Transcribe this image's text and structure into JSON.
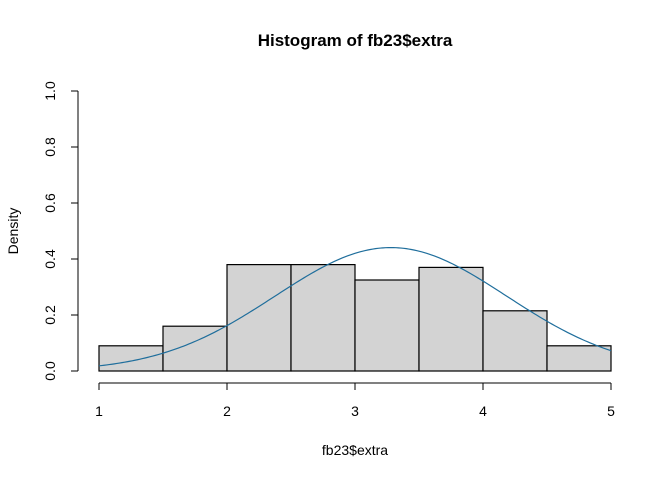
{
  "chart_data": {
    "type": "bar",
    "title": "Histogram of fb23$extra",
    "xlabel": "fb23$extra",
    "ylabel": "Density",
    "xlim": [
      1,
      5
    ],
    "ylim": [
      0,
      1
    ],
    "x_ticks": [
      1,
      2,
      3,
      4,
      5
    ],
    "y_ticks": [
      "0.0",
      "0.2",
      "0.4",
      "0.6",
      "0.8",
      "1.0"
    ],
    "bins": [
      {
        "x0": 1.0,
        "x1": 1.5,
        "density": 0.09
      },
      {
        "x0": 1.5,
        "x1": 2.0,
        "density": 0.16
      },
      {
        "x0": 2.0,
        "x1": 2.5,
        "density": 0.38
      },
      {
        "x0": 2.5,
        "x1": 3.0,
        "density": 0.38
      },
      {
        "x0": 3.0,
        "x1": 3.5,
        "density": 0.325
      },
      {
        "x0": 3.5,
        "x1": 4.0,
        "density": 0.37
      },
      {
        "x0": 4.0,
        "x1": 4.5,
        "density": 0.215
      },
      {
        "x0": 4.5,
        "x1": 5.0,
        "density": 0.09
      }
    ],
    "density_curve": {
      "type": "normal",
      "mean": 3.28,
      "sd": 0.905
    },
    "bar_fill": "#d3d3d3",
    "bar_stroke": "#000000",
    "curve_color": "#1f6e9c",
    "grid": false
  }
}
